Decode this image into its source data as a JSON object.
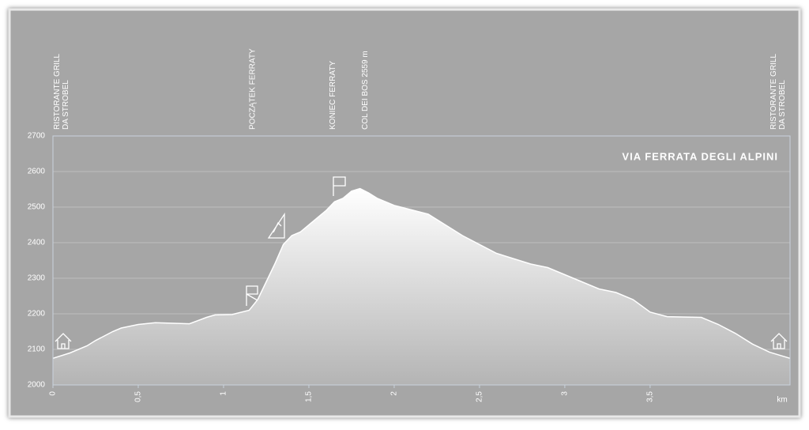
{
  "chart_data": {
    "type": "area",
    "title": "VIA FERRATA DEGLI ALPINI",
    "x_label": "km",
    "x": [
      0,
      0.1,
      0.2,
      0.25,
      0.35,
      0.4,
      0.5,
      0.6,
      0.8,
      0.9,
      0.95,
      1.05,
      1.15,
      1.2,
      1.25,
      1.3,
      1.35,
      1.4,
      1.45,
      1.5,
      1.55,
      1.6,
      1.65,
      1.7,
      1.75,
      1.8,
      1.85,
      1.9,
      2.0,
      2.2,
      2.4,
      2.5,
      2.6,
      2.8,
      2.9,
      3.0,
      3.2,
      3.3,
      3.4,
      3.5,
      3.6,
      3.8,
      3.9,
      4.0,
      4.1,
      4.2,
      4.32
    ],
    "values": [
      2075,
      2090,
      2110,
      2125,
      2150,
      2160,
      2170,
      2175,
      2172,
      2190,
      2197,
      2198,
      2210,
      2240,
      2290,
      2340,
      2395,
      2420,
      2430,
      2450,
      2470,
      2490,
      2515,
      2525,
      2545,
      2552,
      2540,
      2525,
      2505,
      2480,
      2420,
      2395,
      2370,
      2340,
      2330,
      2310,
      2270,
      2260,
      2240,
      2205,
      2192,
      2190,
      2170,
      2145,
      2115,
      2092,
      2075
    ],
    "color": "#ffffff",
    "xlim": [
      0,
      4.32
    ],
    "ylim": [
      2000,
      2700
    ],
    "xticks": [
      0,
      {
        "value": 0.5,
        "label": "0,5"
      },
      1,
      {
        "value": 1.5,
        "label": "1,5"
      },
      2,
      {
        "value": 2.5,
        "label": "2,5"
      },
      3,
      {
        "value": 3.5,
        "label": "3,5"
      }
    ],
    "yticks": [
      2000,
      2100,
      2200,
      2300,
      2400,
      2500,
      2600,
      2700
    ],
    "grid": true,
    "annotations": [
      {
        "x": 0.05,
        "lines": [
          "RISTORANTE GRILL",
          "DA STROBEL"
        ]
      },
      {
        "x": 1.17,
        "lines": [
          "POCZĄTEK FERRATY"
        ]
      },
      {
        "x": 1.64,
        "lines": [
          "KONIEC FERRATY"
        ]
      },
      {
        "x": 1.83,
        "lines": [
          "COL DEI BOS 2559 m"
        ]
      },
      {
        "x": 4.25,
        "lines": [
          "RISTORANTE GRILL",
          "DA STROBEL"
        ]
      }
    ]
  }
}
